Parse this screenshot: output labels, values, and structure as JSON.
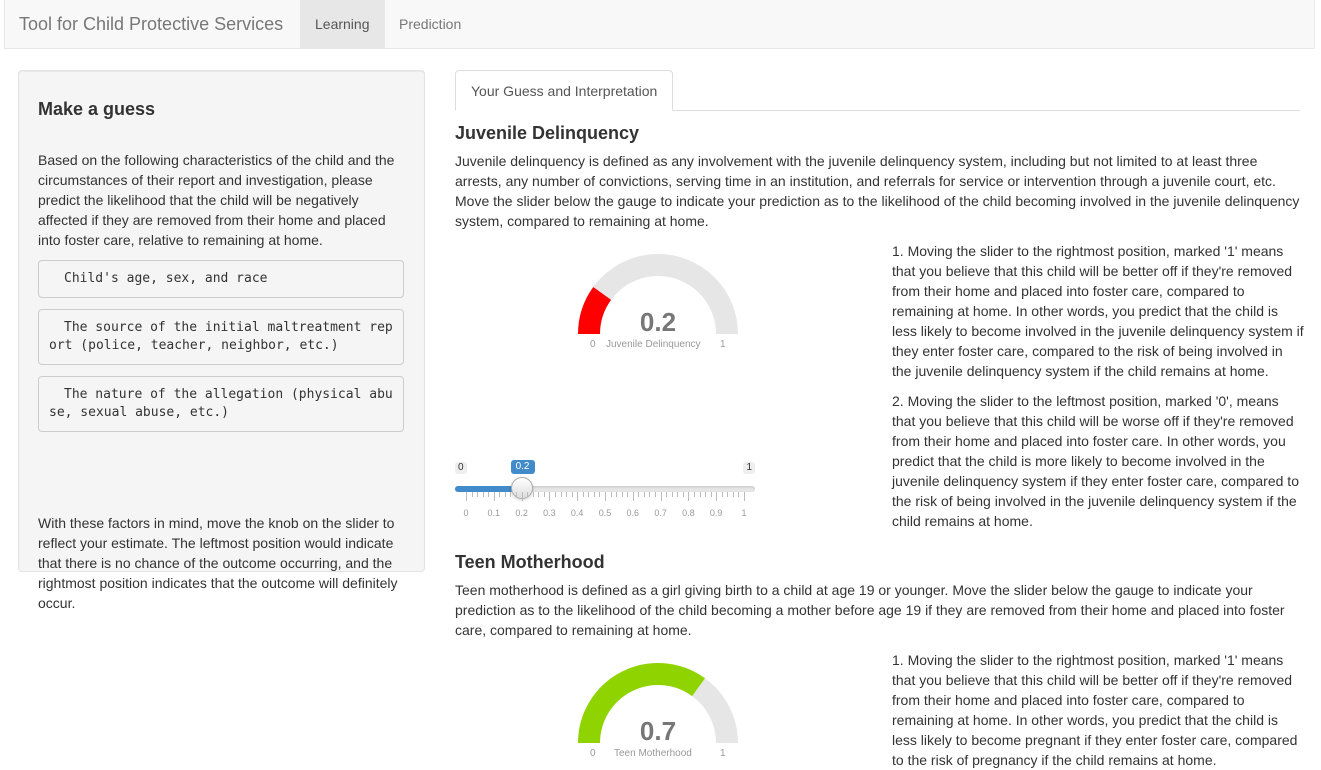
{
  "navbar": {
    "brand": "Tool for Child Protective Services",
    "tabs": [
      {
        "label": "Learning",
        "active": true
      },
      {
        "label": "Prediction",
        "active": false
      }
    ]
  },
  "sidebar": {
    "title": "Make a guess",
    "intro": "Based on the following characteristics of the child and the circumstances of their report and investigation, please predict the likelihood that the child will be negatively affected if they are removed from their home and placed into foster care, relative to remaining at home.",
    "factors": [
      "Child's age, sex, and race",
      "The source of the initial maltreatment report (police, teacher, neighbor, etc.)",
      "The nature of the allegation (physical abuse, sexual abuse, etc.)"
    ],
    "outro": "With these factors in mind, move the knob on the slider to reflect your estimate. The leftmost position would indicate that there is no chance of the outcome occurring, and the rightmost position indicates that the outcome will definitely occur."
  },
  "main_tab": {
    "label": "Your Guess and Interpretation"
  },
  "sections": [
    {
      "title": "Juvenile Delinquency",
      "description": "Juvenile delinquency is defined as any involvement with the juvenile delinquency system, including but not limited to at least three arrests, any number of convictions, serving time in an institution, and referrals for service or intervention through a juvenile court, etc. Move the slider below the gauge to indicate your prediction as to the likelihood of the child becoming involved in the juvenile delinquency system, compared to remaining at home.",
      "gauge": {
        "value": 0.2,
        "value_text": "0.2",
        "min": "0",
        "max": "1",
        "label": "Juvenile Delinquency",
        "color": "#ff0000"
      },
      "slider": {
        "min": "0",
        "max": "1",
        "value": 0.2,
        "value_text": "0.2",
        "ticks": [
          "0",
          "0.1",
          "0.2",
          "0.3",
          "0.4",
          "0.5",
          "0.6",
          "0.7",
          "0.8",
          "0.9",
          "1"
        ]
      },
      "points": [
        "1. Moving the slider to the rightmost position, marked '1' means that you believe that this child will be better off if they're removed from their home and placed into foster care, compared to remaining at home. In other words, you predict that the child is less likely to become involved in the juvenile delinquency system if they enter foster care, compared to the risk of being involved in the juvenile delinquency system if the child remains at home.",
        "2. Moving the slider to the leftmost position, marked '0', means that you believe that this child will be worse off if they're removed from their home and placed into foster care. In other words, you predict that the child is more likely to become involved in the juvenile delinquency system if they enter foster care, compared to the risk of being involved in the juvenile delinquency system if the child remains at home."
      ]
    },
    {
      "title": "Teen Motherhood",
      "description": "Teen motherhood is defined as a girl giving birth to a child at age 19 or younger. Move the slider below the gauge to indicate your prediction as to the likelihood of the child becoming a mother before age 19 if they are removed from their home and placed into foster care, compared to remaining at home.",
      "gauge": {
        "value": 0.7,
        "value_text": "0.7",
        "min": "0",
        "max": "1",
        "label": "Teen Motherhood",
        "color": "#8fd400"
      },
      "points": [
        "1. Moving the slider to the rightmost position, marked '1' means that you believe that this child will be better off if they're removed from their home and placed into foster care, compared to remaining at home. In other words, you predict that the child is less likely to become pregnant if they enter foster care, compared to the risk of pregnancy if the child remains at home."
      ]
    }
  ]
}
